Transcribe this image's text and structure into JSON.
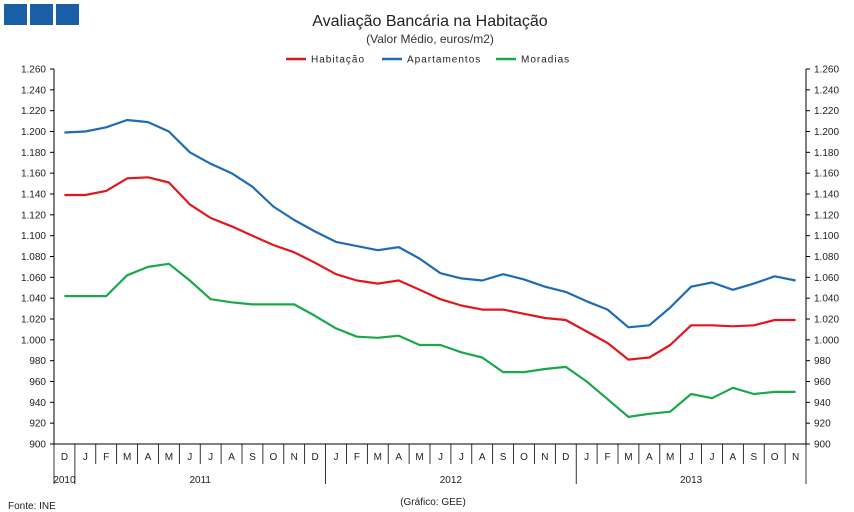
{
  "header": {
    "logo_icon": "logo-squares-icon"
  },
  "chart_data": {
    "type": "line",
    "title": "Avaliação Bancária na Habitação",
    "subtitle": "(Valor Médio, euros/m2)",
    "source": "Fonte: INE",
    "credit": "(Gráfico: GEE)",
    "ylim": [
      900,
      1260
    ],
    "ytick_step": 20,
    "ytick_labels": [
      "900",
      "920",
      "940",
      "960",
      "980",
      "1.000",
      "1.020",
      "1.040",
      "1.060",
      "1.080",
      "1.100",
      "1.120",
      "1.140",
      "1.160",
      "1.180",
      "1.200",
      "1.220",
      "1.240",
      "1.260"
    ],
    "grid": false,
    "legend_position": "top",
    "categories": [
      "D",
      "J",
      "F",
      "M",
      "A",
      "M",
      "J",
      "J",
      "A",
      "S",
      "O",
      "N",
      "D",
      "J",
      "F",
      "M",
      "A",
      "M",
      "J",
      "J",
      "A",
      "S",
      "O",
      "N",
      "D",
      "J",
      "F",
      "M",
      "A",
      "M",
      "J",
      "J",
      "A",
      "S",
      "O",
      "N"
    ],
    "years": [
      {
        "label": "2010",
        "start": 0,
        "end": 1
      },
      {
        "label": "2011",
        "start": 1,
        "end": 13
      },
      {
        "label": "2012",
        "start": 13,
        "end": 25
      },
      {
        "label": "2013",
        "start": 25,
        "end": 36
      }
    ],
    "series": [
      {
        "name": "Habitação",
        "color": "#e0181e",
        "values": [
          1139,
          1139,
          1143,
          1155,
          1156,
          1151,
          1130,
          1117,
          1109,
          1100,
          1091,
          1084,
          1074,
          1063,
          1057,
          1054,
          1057,
          1048,
          1039,
          1033,
          1029,
          1029,
          1025,
          1021,
          1019,
          1008,
          997,
          981,
          983,
          995,
          1014,
          1014,
          1013,
          1014,
          1019,
          1019
        ]
      },
      {
        "name": "Apartamentos",
        "color": "#1f6cb3",
        "values": [
          1199,
          1200,
          1204,
          1211,
          1209,
          1200,
          1180,
          1169,
          1160,
          1147,
          1128,
          1115,
          1104,
          1094,
          1090,
          1086,
          1089,
          1078,
          1064,
          1059,
          1057,
          1063,
          1058,
          1051,
          1046,
          1037,
          1029,
          1012,
          1014,
          1031,
          1051,
          1055,
          1048,
          1054,
          1061,
          1057
        ]
      },
      {
        "name": "Moradias",
        "color": "#1aa84a",
        "values": [
          1042,
          1042,
          1042,
          1062,
          1070,
          1073,
          1057,
          1039,
          1036,
          1034,
          1034,
          1034,
          1023,
          1011,
          1003,
          1002,
          1004,
          995,
          995,
          988,
          983,
          969,
          969,
          972,
          974,
          960,
          943,
          926,
          929,
          931,
          948,
          944,
          954,
          948,
          950,
          950
        ]
      }
    ]
  }
}
